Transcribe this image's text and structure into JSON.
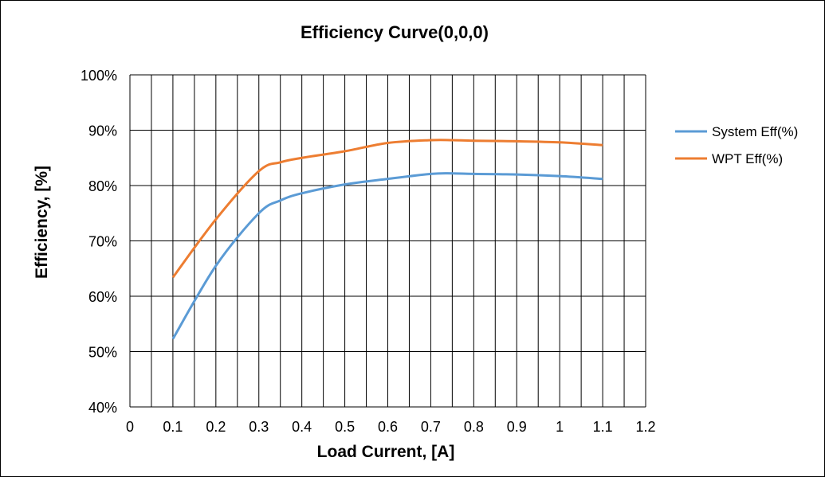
{
  "chart_data": {
    "type": "line",
    "title": "Efficiency Curve(0,0,0)",
    "xlabel": "Load Current, [A]",
    "ylabel": "Efficiency, [%]",
    "xlim": [
      0,
      1.2
    ],
    "ylim": [
      40,
      100
    ],
    "x_ticks": [
      "0",
      "0.1",
      "0.2",
      "0.3",
      "0.4",
      "0.5",
      "0.6",
      "0.7",
      "0.8",
      "0.9",
      "1",
      "1.1",
      "1.2"
    ],
    "y_ticks": [
      "40%",
      "50%",
      "60%",
      "70%",
      "80%",
      "90%",
      "100%"
    ],
    "x_gridlines": [
      0.05,
      0.1,
      0.15,
      0.2,
      0.25,
      0.3,
      0.35,
      0.4,
      0.45,
      0.5,
      0.55,
      0.6,
      0.65,
      0.7,
      0.75,
      0.8,
      0.85,
      0.9,
      0.95,
      1.0,
      1.05,
      1.1,
      1.15,
      1.2
    ],
    "y_gridlines": [
      50,
      60,
      70,
      80,
      90,
      100
    ],
    "grid": true,
    "legend_position": "right",
    "series": [
      {
        "name": "System Eff(%)",
        "color": "#5B9BD5",
        "x": [
          0.1,
          0.2,
          0.3,
          0.35,
          0.4,
          0.5,
          0.6,
          0.7,
          0.75,
          0.8,
          0.9,
          1.0,
          1.1
        ],
        "y": [
          52.3,
          65.5,
          75.0,
          77.3,
          78.6,
          80.2,
          81.2,
          82.1,
          82.2,
          82.1,
          82.0,
          81.7,
          81.2
        ]
      },
      {
        "name": "WPT Eff(%)",
        "color": "#ED7D31",
        "x": [
          0.1,
          0.2,
          0.3,
          0.35,
          0.4,
          0.5,
          0.6,
          0.7,
          0.75,
          0.8,
          0.9,
          1.0,
          1.1
        ],
        "y": [
          63.4,
          73.9,
          82.6,
          84.2,
          85.0,
          86.2,
          87.7,
          88.2,
          88.2,
          88.1,
          88.0,
          87.8,
          87.3
        ]
      }
    ]
  }
}
